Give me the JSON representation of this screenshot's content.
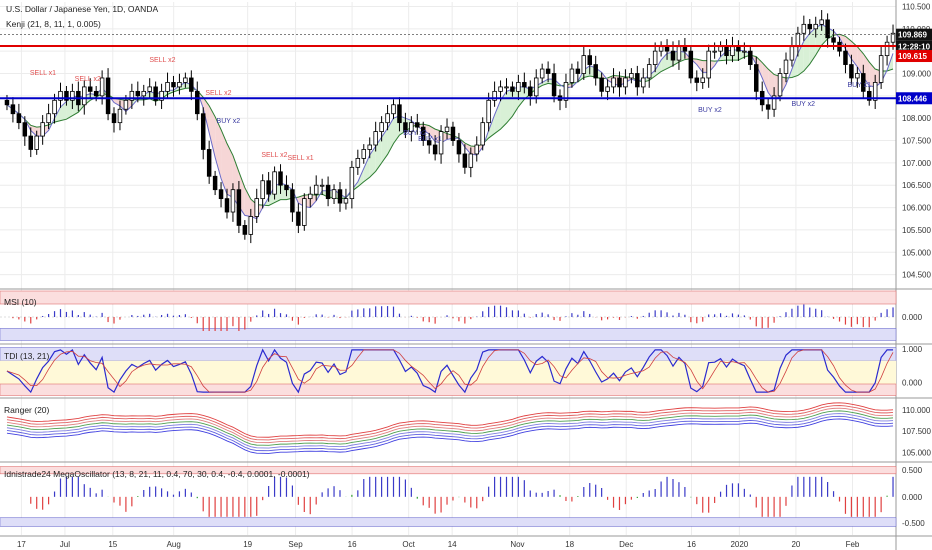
{
  "header": {
    "symbol_line": "U.S. Dollar / Japanese Yen, 1D, OANDA",
    "indicator_line": "Kenji (21, 8, 11, 1, 0.005)"
  },
  "price_badges": {
    "last": "109.869",
    "time": "12:28:10",
    "resistance": "109.615",
    "support": "108.446"
  },
  "colors": {
    "up_candle": "#ffffff",
    "down_candle": "#000000",
    "resistance_line": "#e00000",
    "support_line": "#0000c8",
    "buy_text": "#3a3aa0",
    "sell_text": "#e05050"
  },
  "panels": [
    {
      "name": "MSI (10)",
      "ticks": [
        "0.000"
      ]
    },
    {
      "name": "TDI (13, 21)",
      "ticks": [
        "1.000",
        "0.000"
      ]
    },
    {
      "name": "Ranger (20)",
      "ticks": [
        "110.000",
        "107.500",
        "105.000"
      ]
    },
    {
      "name": "Idnistrade24 MegaOscillator (13, 8, 21, 11, 0.4, 70, 30, 0.4, -0.4, 0.0001, -0.0001)",
      "ticks": [
        "0.500",
        "0.000",
        "-0.500"
      ]
    }
  ],
  "signals": [
    {
      "text": "SELL x1",
      "x_label": "17"
    },
    {
      "text": "SELL x2",
      "x_label": "Jul"
    },
    {
      "text": "SELL x2",
      "x_label": "15"
    },
    {
      "text": "SELL x2",
      "x_label": "Aug"
    },
    {
      "text": "BUY x2",
      "x_label": "15"
    },
    {
      "text": "SELL x2",
      "x_label": "Aug"
    },
    {
      "text": "SELL x1",
      "x_label": "Aug"
    },
    {
      "text": "BUY x2",
      "x_label": "16"
    },
    {
      "text": "BUY x1",
      "x_label": "16"
    },
    {
      "text": "BUY x2",
      "x_label": "18"
    },
    {
      "text": "BUY x2",
      "x_label": "16"
    },
    {
      "text": "BUY x1",
      "x_label": "16"
    }
  ],
  "chart_data": {
    "type": "candlestick",
    "title": "U.S. Dollar / Japanese Yen, 1D, OANDA",
    "x_ticks": [
      "17",
      "Jul",
      "15",
      "Aug",
      "19",
      "Sep",
      "16",
      "Oct",
      "14",
      "Nov",
      "18",
      "Dec",
      "16",
      "2020",
      "20",
      "Feb"
    ],
    "y_ticks": [
      110.5,
      110.0,
      109.5,
      109.0,
      108.5,
      108.0,
      107.5,
      107.0,
      106.5,
      106.0,
      105.5,
      105.0,
      104.5
    ],
    "ylim": [
      104.2,
      110.6
    ],
    "close": [
      108.3,
      108.1,
      107.9,
      107.6,
      107.3,
      107.6,
      107.9,
      108.1,
      108.4,
      108.6,
      108.4,
      108.6,
      108.3,
      108.7,
      108.6,
      108.5,
      108.9,
      108.1,
      107.9,
      108.2,
      108.4,
      108.6,
      108.5,
      108.6,
      108.7,
      108.4,
      108.6,
      108.8,
      108.7,
      108.8,
      108.9,
      108.6,
      108.1,
      107.3,
      106.7,
      106.4,
      106.2,
      105.9,
      106.4,
      105.6,
      105.4,
      105.8,
      106.2,
      106.6,
      106.3,
      106.8,
      106.5,
      106.4,
      105.9,
      105.6,
      106.2,
      106.3,
      106.5,
      106.5,
      106.2,
      106.4,
      106.1,
      106.2,
      106.9,
      107.1,
      107.3,
      107.4,
      107.7,
      107.9,
      108.1,
      108.3,
      107.9,
      107.7,
      107.9,
      107.8,
      107.5,
      107.4,
      107.2,
      107.7,
      107.8,
      107.5,
      107.2,
      106.9,
      107.2,
      107.4,
      107.9,
      108.4,
      108.6,
      108.7,
      108.7,
      108.6,
      108.8,
      108.7,
      108.5,
      108.9,
      109.1,
      109.0,
      108.5,
      108.4,
      108.8,
      109.1,
      109.0,
      109.4,
      109.2,
      108.9,
      108.6,
      108.7,
      108.9,
      108.7,
      108.9,
      109.0,
      108.7,
      108.9,
      109.2,
      109.5,
      109.6,
      109.5,
      109.3,
      109.6,
      109.5,
      108.9,
      108.8,
      108.9,
      109.5,
      109.5,
      109.6,
      109.4,
      109.6,
      109.5,
      109.5,
      109.2,
      108.6,
      108.3,
      108.2,
      108.5,
      109.0,
      109.3,
      109.6,
      109.9,
      110.1,
      110.0,
      110.1,
      110.2,
      109.8,
      109.7,
      109.5,
      109.2,
      108.9,
      109.0,
      108.6,
      108.4,
      108.8,
      109.4,
      109.7,
      109.9
    ],
    "support": 108.446,
    "resistance": 109.615,
    "last": 109.869
  }
}
